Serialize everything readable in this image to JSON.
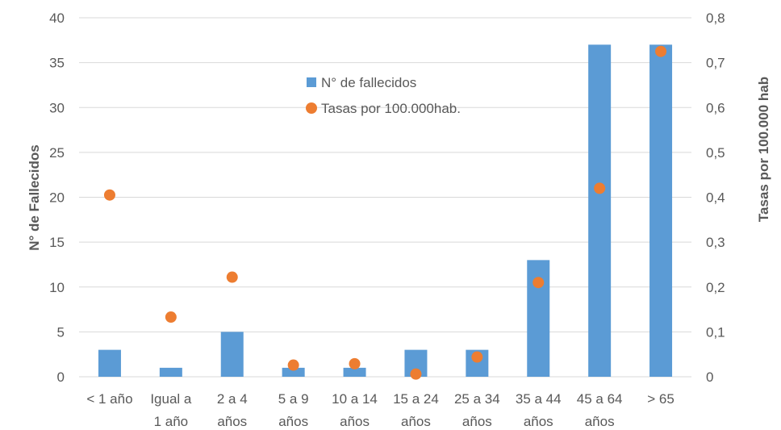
{
  "chart_data": {
    "type": "bar",
    "categories": [
      [
        "< 1 año"
      ],
      [
        "Igual a",
        "1 año"
      ],
      [
        "2 a 4",
        "años"
      ],
      [
        "5 a 9",
        "años"
      ],
      [
        "10 a 14",
        "años"
      ],
      [
        "15 a 24",
        "años"
      ],
      [
        "25 a 34",
        "años"
      ],
      [
        "35 a 44",
        "años"
      ],
      [
        "45 a 64",
        "años"
      ],
      [
        "> 65"
      ]
    ],
    "series": [
      {
        "name": "N° de fallecidos",
        "type": "bar",
        "axis": "left",
        "color": "#5b9bd5",
        "values": [
          3,
          1,
          5,
          1,
          1,
          3,
          3,
          13,
          37,
          37
        ]
      },
      {
        "name": "Tasas por 100.000hab.",
        "type": "scatter",
        "axis": "right",
        "color": "#ed7d31",
        "values": [
          0.405,
          0.133,
          0.222,
          0.026,
          0.029,
          0.006,
          0.044,
          0.21,
          0.42,
          0.725
        ]
      }
    ],
    "ylabel": "N° de Fallecidos",
    "ylabel_right": "Tasas por 100.000 hab",
    "ylim": [
      0,
      40
    ],
    "ylim_right": [
      0,
      0.8
    ],
    "yticks": [
      "0",
      "5",
      "10",
      "15",
      "20",
      "25",
      "30",
      "35",
      "40"
    ],
    "yticks_right": [
      "0",
      "0,1",
      "0,2",
      "0,3",
      "0,4",
      "0,5",
      "0,6",
      "0,7",
      "0,8"
    ],
    "grid": true,
    "legend_position": "top-center"
  }
}
